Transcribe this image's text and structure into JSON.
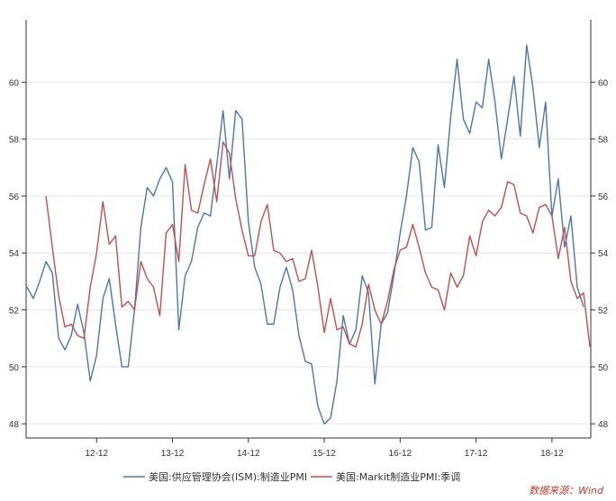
{
  "chart_data": {
    "type": "line",
    "title": "",
    "xlabel": "",
    "ylabel": "",
    "x_ticks": [
      "12-12",
      "13-12",
      "14-12",
      "15-12",
      "16-12",
      "17-12",
      "18-12"
    ],
    "ylim": [
      47.5,
      62
    ],
    "y_ticks": [
      48,
      50,
      52,
      54,
      56,
      58,
      60
    ],
    "grid": true,
    "legend_position": "bottom",
    "start_month": "2012-01",
    "series": [
      {
        "name": "美国:供应管理协会(ISM):制造业PMI",
        "color": "#4a78a8",
        "values": [
          52.8,
          52.4,
          53.0,
          53.7,
          53.3,
          51.0,
          50.6,
          51.1,
          52.2,
          51.2,
          49.5,
          50.4,
          52.4,
          53.1,
          51.5,
          50.0,
          50.0,
          52.0,
          54.9,
          56.3,
          56.0,
          56.6,
          57.0,
          56.5,
          51.3,
          53.2,
          53.7,
          54.9,
          55.4,
          55.3,
          57.1,
          59.0,
          56.6,
          59.0,
          58.7,
          55.1,
          53.5,
          52.9,
          51.5,
          51.5,
          52.8,
          53.5,
          52.7,
          51.1,
          50.2,
          50.1,
          48.6,
          48.0,
          48.2,
          49.5,
          51.8,
          50.8,
          51.3,
          53.2,
          52.6,
          49.4,
          51.5,
          51.9,
          53.2,
          54.7,
          56.0,
          57.7,
          57.2,
          54.8,
          54.9,
          57.8,
          56.3,
          58.8,
          60.8,
          58.7,
          58.2,
          59.3,
          59.1,
          60.8,
          59.3,
          57.3,
          58.7,
          60.2,
          58.1,
          61.3,
          59.8,
          57.7,
          59.3,
          55.3,
          56.6,
          54.2,
          55.3,
          52.8,
          52.1
        ]
      },
      {
        "name": "美国:Markit制造业PMI:季调",
        "color": "#c0504d",
        "values": [
          null,
          null,
          null,
          56.0,
          54.2,
          52.5,
          51.4,
          51.5,
          51.1,
          51.0,
          52.8,
          54.0,
          55.8,
          54.3,
          54.6,
          52.1,
          52.3,
          52.0,
          53.7,
          53.1,
          52.8,
          51.8,
          54.7,
          55.0,
          53.7,
          57.1,
          55.5,
          55.4,
          56.4,
          57.3,
          55.8,
          57.9,
          57.5,
          55.9,
          54.8,
          53.9,
          53.9,
          55.1,
          55.7,
          54.1,
          54.0,
          53.7,
          53.8,
          53.0,
          53.1,
          54.1,
          52.8,
          51.2,
          52.4,
          51.3,
          51.4,
          50.8,
          50.7,
          51.5,
          52.9,
          52.0,
          51.5,
          52.3,
          53.4,
          54.1,
          54.2,
          55.0,
          54.2,
          53.3,
          52.8,
          52.7,
          52.0,
          53.3,
          52.8,
          53.2,
          54.6,
          53.9,
          55.1,
          55.5,
          55.3,
          55.6,
          56.5,
          56.4,
          55.4,
          55.3,
          54.7,
          55.6,
          55.7,
          55.3,
          53.8,
          54.9,
          53.0,
          52.4,
          52.6,
          50.7
        ]
      }
    ]
  },
  "source_label": "数据来源：Wind"
}
